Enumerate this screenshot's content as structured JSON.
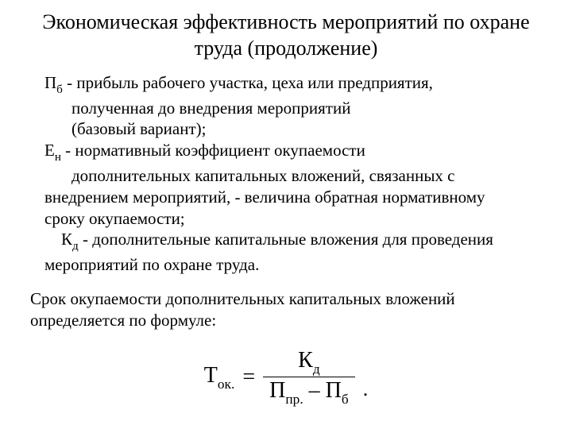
{
  "title": "Экономическая эффективность мероприятий по охране труда (продолжение)",
  "defs": {
    "pb": {
      "sym": "П",
      "sub": "б",
      "dash": " - ",
      "l1": "прибыль рабочего участка, цеха или предприятия,",
      "l2": "полученная до внедрения мероприятий",
      "l3": "(базовый вариант);"
    },
    "en": {
      "sym": "Е",
      "sub": "н",
      "dash": " - ",
      "l1": "нормативный коэффициент окупаемости",
      "l2": "дополнительных капитальных вложений, связанных с",
      "l3": "внедрением мероприятий, - величина обратная нормативному",
      "l4": "сроку окупаемости;"
    },
    "kd": {
      "sym": "К",
      "sub": "д",
      "dash": " - ",
      "l1": "дополнительные капитальные вложения для проведения",
      "l2": "мероприятий по охране труда."
    }
  },
  "para2": "Срок окупаемости дополнительных капитальных вложений определяется по формуле:",
  "formula": {
    "T": "Т",
    "T_sub": "ок.",
    "eq": "=",
    "K": "К",
    "K_sub": "д",
    "P1": "П",
    "P1_sub": "пр.",
    "minus": " – ",
    "P2": "П",
    "P2_sub": "б",
    "dot": "."
  },
  "style": {
    "bg": "#ffffff",
    "fg": "#000000",
    "title_fontsize": 26,
    "body_fontsize": 21,
    "formula_fontsize": 28,
    "font_family": "Times New Roman"
  }
}
